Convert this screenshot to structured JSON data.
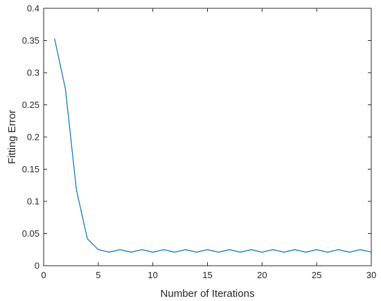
{
  "chart_data": {
    "type": "line",
    "xlabel": "Number of Iterations",
    "ylabel": "Fitting Error",
    "xlim": [
      0,
      30
    ],
    "ylim": [
      0,
      0.4
    ],
    "xticks": [
      0,
      5,
      10,
      15,
      20,
      25,
      30
    ],
    "yticks": [
      0,
      0.05,
      0.1,
      0.15,
      0.2,
      0.25,
      0.3,
      0.35,
      0.4
    ],
    "xtick_labels": [
      "0",
      "5",
      "10",
      "15",
      "20",
      "25",
      "30"
    ],
    "ytick_labels": [
      "0",
      "0.05",
      "0.1",
      "0.15",
      "0.2",
      "0.25",
      "0.3",
      "0.35",
      "0.4"
    ],
    "grid": false,
    "line_color": "#0072BD",
    "series": [
      {
        "x": [
          1,
          2,
          3,
          4,
          5,
          6,
          7,
          8,
          9,
          10,
          11,
          12,
          13,
          14,
          15,
          16,
          17,
          18,
          19,
          20,
          21,
          22,
          23,
          24,
          25,
          26,
          27,
          28,
          29,
          30
        ],
        "values": [
          0.353,
          0.274,
          0.118,
          0.042,
          0.025,
          0.021,
          0.025,
          0.021,
          0.025,
          0.021,
          0.025,
          0.021,
          0.025,
          0.021,
          0.025,
          0.021,
          0.025,
          0.021,
          0.025,
          0.021,
          0.025,
          0.021,
          0.025,
          0.021,
          0.025,
          0.021,
          0.025,
          0.021,
          0.025,
          0.021
        ]
      }
    ]
  }
}
